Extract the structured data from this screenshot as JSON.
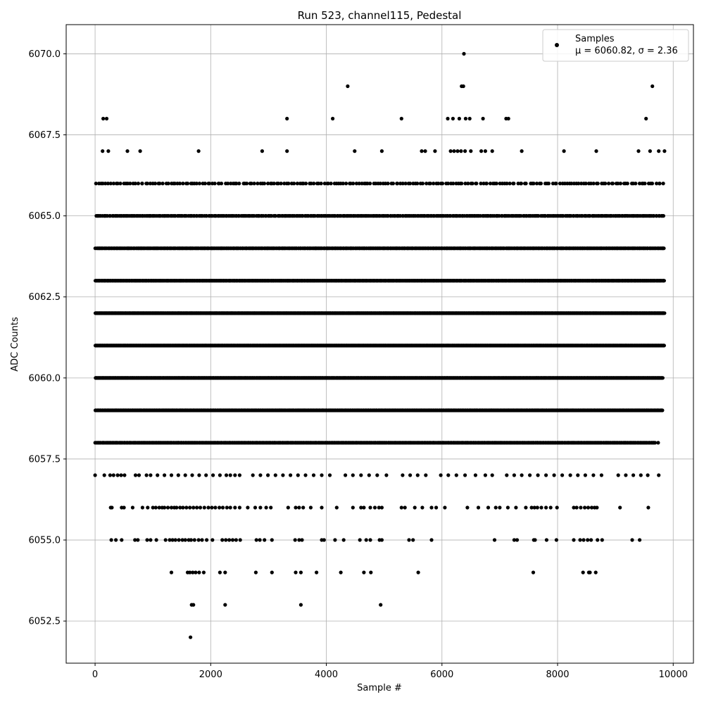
{
  "chart_data": {
    "type": "scatter",
    "title": "Run 523, channel115, Pedestal",
    "xlabel": "Sample #",
    "ylabel": "ADC Counts",
    "xlim": [
      -500,
      10350
    ],
    "ylim": [
      6051.2,
      6070.9
    ],
    "xticks": [
      0,
      2000,
      4000,
      6000,
      8000,
      10000
    ],
    "xtick_labels": [
      "0",
      "2000",
      "4000",
      "6000",
      "8000",
      "10000"
    ],
    "yticks": [
      6052.5,
      6055.0,
      6057.5,
      6060.0,
      6062.5,
      6065.0,
      6067.5,
      6070.0
    ],
    "ytick_labels": [
      "6052.5",
      "6055.0",
      "6057.5",
      "6060.0",
      "6062.5",
      "6065.0",
      "6067.5",
      "6070.0"
    ],
    "grid": true,
    "legend": {
      "placement": "top-right",
      "entries": [
        {
          "label": "Samples",
          "sublabel": "μ = 6060.82, σ = 2.36"
        }
      ]
    },
    "marker_color": "#000000",
    "series": [
      {
        "name": "Samples",
        "points": [
          [
            1650,
            6052
          ],
          [
            1670,
            6053
          ],
          [
            1700,
            6053
          ],
          [
            2250,
            6053
          ],
          [
            3560,
            6053
          ],
          [
            4940,
            6053
          ],
          [
            1320,
            6054
          ],
          [
            1600,
            6054
          ],
          [
            1640,
            6054
          ],
          [
            1690,
            6054
          ],
          [
            1740,
            6054
          ],
          [
            1800,
            6054
          ],
          [
            1880,
            6054
          ],
          [
            2160,
            6054
          ],
          [
            2250,
            6054
          ],
          [
            2780,
            6054
          ],
          [
            3060,
            6054
          ],
          [
            3470,
            6054
          ],
          [
            3560,
            6054
          ],
          [
            3830,
            6054
          ],
          [
            4250,
            6054
          ],
          [
            4650,
            6054
          ],
          [
            4770,
            6054
          ],
          [
            5590,
            6054
          ],
          [
            7580,
            6054
          ],
          [
            8440,
            6054
          ],
          [
            8540,
            6054
          ],
          [
            8560,
            6054
          ],
          [
            8660,
            6054
          ],
          [
            280,
            6055
          ],
          [
            360,
            6055
          ],
          [
            460,
            6055
          ],
          [
            690,
            6055
          ],
          [
            740,
            6055
          ],
          [
            900,
            6055
          ],
          [
            960,
            6055
          ],
          [
            1060,
            6055
          ],
          [
            1220,
            6055
          ],
          [
            1290,
            6055
          ],
          [
            1340,
            6055
          ],
          [
            1390,
            6055
          ],
          [
            1450,
            6055
          ],
          [
            1510,
            6055
          ],
          [
            1560,
            6055
          ],
          [
            1620,
            6055
          ],
          [
            1660,
            6055
          ],
          [
            1720,
            6055
          ],
          [
            1790,
            6055
          ],
          [
            1850,
            6055
          ],
          [
            1930,
            6055
          ],
          [
            2030,
            6055
          ],
          [
            2200,
            6055
          ],
          [
            2260,
            6055
          ],
          [
            2320,
            6055
          ],
          [
            2380,
            6055
          ],
          [
            2440,
            6055
          ],
          [
            2510,
            6055
          ],
          [
            2790,
            6055
          ],
          [
            2850,
            6055
          ],
          [
            2930,
            6055
          ],
          [
            3060,
            6055
          ],
          [
            3460,
            6055
          ],
          [
            3530,
            6055
          ],
          [
            3580,
            6055
          ],
          [
            3920,
            6055
          ],
          [
            3960,
            6055
          ],
          [
            4150,
            6055
          ],
          [
            4300,
            6055
          ],
          [
            4580,
            6055
          ],
          [
            4690,
            6055
          ],
          [
            4760,
            6055
          ],
          [
            4920,
            6055
          ],
          [
            4960,
            6055
          ],
          [
            5430,
            6055
          ],
          [
            5500,
            6055
          ],
          [
            5820,
            6055
          ],
          [
            6910,
            6055
          ],
          [
            7250,
            6055
          ],
          [
            7300,
            6055
          ],
          [
            7590,
            6055
          ],
          [
            7610,
            6055
          ],
          [
            7810,
            6055
          ],
          [
            7980,
            6055
          ],
          [
            8280,
            6055
          ],
          [
            8390,
            6055
          ],
          [
            8450,
            6055
          ],
          [
            8520,
            6055
          ],
          [
            8580,
            6055
          ],
          [
            8690,
            6055
          ],
          [
            8770,
            6055
          ],
          [
            9290,
            6055
          ],
          [
            9420,
            6055
          ],
          [
            270,
            6056
          ],
          [
            290,
            6056
          ],
          [
            460,
            6056
          ],
          [
            500,
            6056
          ],
          [
            650,
            6056
          ],
          [
            820,
            6056
          ],
          [
            910,
            6056
          ],
          [
            1000,
            6056
          ],
          [
            1050,
            6056
          ],
          [
            1110,
            6056
          ],
          [
            1160,
            6056
          ],
          [
            1200,
            6056
          ],
          [
            1260,
            6056
          ],
          [
            1320,
            6056
          ],
          [
            1370,
            6056
          ],
          [
            1410,
            6056
          ],
          [
            1470,
            6056
          ],
          [
            1520,
            6056
          ],
          [
            1580,
            6056
          ],
          [
            1640,
            6056
          ],
          [
            1700,
            6056
          ],
          [
            1760,
            6056
          ],
          [
            1820,
            6056
          ],
          [
            1890,
            6056
          ],
          [
            1960,
            6056
          ],
          [
            2020,
            6056
          ],
          [
            2080,
            6056
          ],
          [
            2150,
            6056
          ],
          [
            2210,
            6056
          ],
          [
            2280,
            6056
          ],
          [
            2340,
            6056
          ],
          [
            2420,
            6056
          ],
          [
            2500,
            6056
          ],
          [
            2640,
            6056
          ],
          [
            2770,
            6056
          ],
          [
            2860,
            6056
          ],
          [
            2960,
            6056
          ],
          [
            3040,
            6056
          ],
          [
            3340,
            6056
          ],
          [
            3470,
            6056
          ],
          [
            3530,
            6056
          ],
          [
            3600,
            6056
          ],
          [
            3730,
            6056
          ],
          [
            3920,
            6056
          ],
          [
            4180,
            6056
          ],
          [
            4460,
            6056
          ],
          [
            4600,
            6056
          ],
          [
            4650,
            6056
          ],
          [
            4760,
            6056
          ],
          [
            4840,
            6056
          ],
          [
            4910,
            6056
          ],
          [
            4960,
            6056
          ],
          [
            5300,
            6056
          ],
          [
            5360,
            6056
          ],
          [
            5530,
            6056
          ],
          [
            5660,
            6056
          ],
          [
            5820,
            6056
          ],
          [
            5900,
            6056
          ],
          [
            6050,
            6056
          ],
          [
            6440,
            6056
          ],
          [
            6630,
            6056
          ],
          [
            6800,
            6056
          ],
          [
            6930,
            6056
          ],
          [
            7000,
            6056
          ],
          [
            7140,
            6056
          ],
          [
            7280,
            6056
          ],
          [
            7450,
            6056
          ],
          [
            7550,
            6056
          ],
          [
            7600,
            6056
          ],
          [
            7650,
            6056
          ],
          [
            7720,
            6056
          ],
          [
            7800,
            6056
          ],
          [
            7880,
            6056
          ],
          [
            7990,
            6056
          ],
          [
            8280,
            6056
          ],
          [
            8330,
            6056
          ],
          [
            8400,
            6056
          ],
          [
            8470,
            6056
          ],
          [
            8530,
            6056
          ],
          [
            8590,
            6056
          ],
          [
            8640,
            6056
          ],
          [
            8680,
            6056
          ],
          [
            9080,
            6056
          ],
          [
            9570,
            6056
          ],
          [
            0,
            6057
          ],
          [
            160,
            6057
          ],
          [
            260,
            6057
          ],
          [
            320,
            6057
          ],
          [
            390,
            6057
          ],
          [
            450,
            6057
          ],
          [
            510,
            6057
          ],
          [
            700,
            6057
          ],
          [
            760,
            6057
          ],
          [
            890,
            6057
          ],
          [
            960,
            6057
          ],
          [
            1080,
            6057
          ],
          [
            1200,
            6057
          ],
          [
            1320,
            6057
          ],
          [
            1440,
            6057
          ],
          [
            1560,
            6057
          ],
          [
            1680,
            6057
          ],
          [
            1800,
            6057
          ],
          [
            1920,
            6057
          ],
          [
            2040,
            6057
          ],
          [
            2160,
            6057
          ],
          [
            2270,
            6057
          ],
          [
            2340,
            6057
          ],
          [
            2420,
            6057
          ],
          [
            2500,
            6057
          ],
          [
            2730,
            6057
          ],
          [
            2860,
            6057
          ],
          [
            2990,
            6057
          ],
          [
            3120,
            6057
          ],
          [
            3250,
            6057
          ],
          [
            3380,
            6057
          ],
          [
            3510,
            6057
          ],
          [
            3640,
            6057
          ],
          [
            3780,
            6057
          ],
          [
            3920,
            6057
          ],
          [
            4060,
            6057
          ],
          [
            4330,
            6057
          ],
          [
            4460,
            6057
          ],
          [
            4600,
            6057
          ],
          [
            4740,
            6057
          ],
          [
            4880,
            6057
          ],
          [
            5040,
            6057
          ],
          [
            5320,
            6057
          ],
          [
            5450,
            6057
          ],
          [
            5580,
            6057
          ],
          [
            5720,
            6057
          ],
          [
            5980,
            6057
          ],
          [
            6110,
            6057
          ],
          [
            6250,
            6057
          ],
          [
            6400,
            6057
          ],
          [
            6580,
            6057
          ],
          [
            6750,
            6057
          ],
          [
            6870,
            6057
          ],
          [
            7120,
            6057
          ],
          [
            7250,
            6057
          ],
          [
            7380,
            6057
          ],
          [
            7520,
            6057
          ],
          [
            7660,
            6057
          ],
          [
            7800,
            6057
          ],
          [
            7940,
            6057
          ],
          [
            8080,
            6057
          ],
          [
            8220,
            6057
          ],
          [
            8350,
            6057
          ],
          [
            8480,
            6057
          ],
          [
            8620,
            6057
          ],
          [
            8760,
            6057
          ],
          [
            9050,
            6057
          ],
          [
            9180,
            6057
          ],
          [
            9310,
            6057
          ],
          [
            9440,
            6057
          ],
          [
            9560,
            6057
          ],
          [
            9750,
            6057
          ],
          [
            9740,
            6058
          ],
          [
            5300,
            6068
          ],
          [
            6100,
            6068
          ],
          [
            6190,
            6068
          ],
          [
            6300,
            6068
          ],
          [
            6410,
            6068
          ],
          [
            6480,
            6068
          ],
          [
            6710,
            6068
          ],
          [
            7110,
            6068
          ],
          [
            7150,
            6068
          ],
          [
            9530,
            6068
          ],
          [
            140,
            6068
          ],
          [
            200,
            6068
          ],
          [
            3320,
            6068
          ],
          [
            4110,
            6068
          ],
          [
            4370,
            6069
          ],
          [
            6340,
            6069
          ],
          [
            6370,
            6069
          ],
          [
            9640,
            6069
          ],
          [
            6380,
            6070
          ],
          [
            130,
            6067
          ],
          [
            230,
            6067
          ],
          [
            560,
            6067
          ],
          [
            780,
            6067
          ],
          [
            1790,
            6067
          ],
          [
            2890,
            6067
          ],
          [
            3320,
            6067
          ],
          [
            4490,
            6067
          ],
          [
            4960,
            6067
          ],
          [
            5650,
            6067
          ],
          [
            5710,
            6067
          ],
          [
            5880,
            6067
          ],
          [
            6150,
            6067
          ],
          [
            6210,
            6067
          ],
          [
            6270,
            6067
          ],
          [
            6330,
            6067
          ],
          [
            6400,
            6067
          ],
          [
            6500,
            6067
          ],
          [
            6680,
            6067
          ],
          [
            6750,
            6067
          ],
          [
            6870,
            6067
          ],
          [
            7380,
            6067
          ],
          [
            8110,
            6067
          ],
          [
            8670,
            6067
          ],
          [
            9400,
            6067
          ],
          [
            9600,
            6067
          ],
          [
            9750,
            6067
          ],
          [
            9850,
            6067
          ]
        ],
        "dense_rows": [
          {
            "y": 6058,
            "x_from": 0,
            "x_to": 9700,
            "count": 620
          },
          {
            "y": 6059,
            "x_from": 0,
            "x_to": 9820,
            "count": 850
          },
          {
            "y": 6060,
            "x_from": 0,
            "x_to": 9820,
            "count": 1150
          },
          {
            "y": 6061,
            "x_from": 0,
            "x_to": 9850,
            "count": 1250
          },
          {
            "y": 6062,
            "x_from": 0,
            "x_to": 9850,
            "count": 1150
          },
          {
            "y": 6063,
            "x_from": 0,
            "x_to": 9850,
            "count": 900
          },
          {
            "y": 6064,
            "x_from": 0,
            "x_to": 9850,
            "count": 650
          },
          {
            "y": 6065,
            "x_from": 0,
            "x_to": 9850,
            "count": 420
          },
          {
            "y": 6066,
            "x_from": 0,
            "x_to": 9850,
            "count": 230
          }
        ]
      }
    ]
  }
}
